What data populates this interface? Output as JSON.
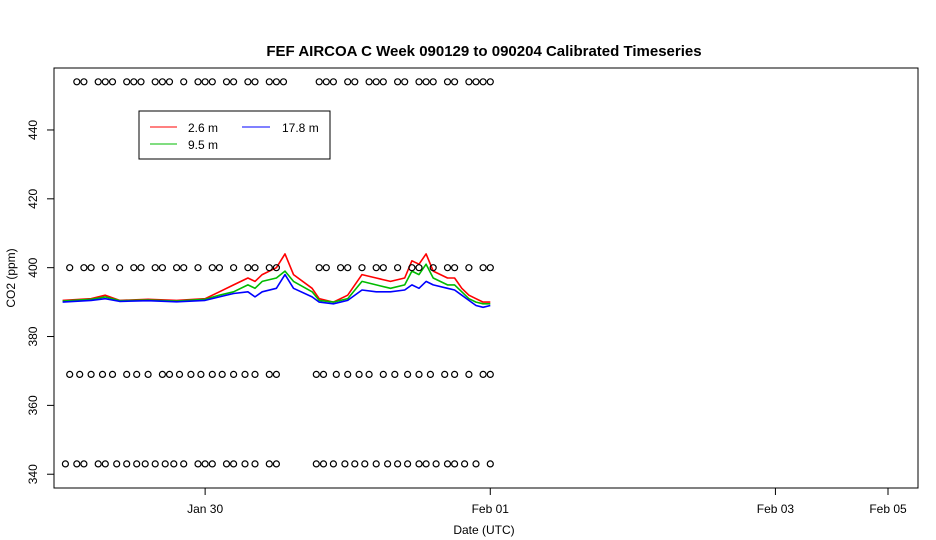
{
  "chart_data": {
    "type": "line",
    "title": "FEF AIRCOA C  Week 090129 to 090204  Calibrated Timeseries",
    "xlabel": "Date (UTC)",
    "ylabel": "CO2 (ppm)",
    "xlim": [
      -1.06,
      5.0
    ],
    "ylim": [
      336,
      458
    ],
    "x_ticks": [
      {
        "value": 0,
        "label": "Jan 30"
      },
      {
        "value": 2,
        "label": "Feb 01"
      },
      {
        "value": 4,
        "label": "Feb 03"
      },
      {
        "value": 6,
        "label": "Feb 05"
      }
    ],
    "y_ticks": [
      {
        "value": 340,
        "label": "340"
      },
      {
        "value": 360,
        "label": "360"
      },
      {
        "value": 380,
        "label": "380"
      },
      {
        "value": 400,
        "label": "400"
      },
      {
        "value": 420,
        "label": "420"
      },
      {
        "value": 440,
        "label": "440"
      }
    ],
    "legend": {
      "placement": "top-left",
      "entries": [
        {
          "name": "2.6 m",
          "color": "#ff0000"
        },
        {
          "name": "9.5 m",
          "color": "#00bb00"
        },
        {
          "name": "17.8 m",
          "color": "#0000ff"
        }
      ]
    },
    "series": [
      {
        "name": "2.6 m",
        "color": "#ff0000",
        "x": [
          -1.0,
          -0.8,
          -0.7,
          -0.6,
          -0.4,
          -0.2,
          0.0,
          0.1,
          0.2,
          0.3,
          0.35,
          0.4,
          0.5,
          0.56,
          0.62,
          0.75,
          0.8,
          0.9,
          1.0,
          1.1,
          1.2,
          1.3,
          1.4,
          1.45,
          1.5,
          1.55,
          1.6,
          1.7,
          1.75,
          1.8,
          1.85,
          1.9,
          1.95,
          2.0
        ],
        "y": [
          390.5,
          391,
          392,
          390.5,
          390.8,
          390.5,
          391,
          393,
          395,
          397,
          396,
          398,
          400,
          404,
          398,
          394,
          391,
          390,
          392,
          398,
          397,
          396,
          397,
          402,
          401,
          404,
          399,
          397,
          397,
          394,
          392,
          391,
          390,
          390
        ]
      },
      {
        "name": "9.5 m",
        "color": "#00bb00",
        "x": [
          -1.0,
          -0.8,
          -0.7,
          -0.6,
          -0.4,
          -0.2,
          0.0,
          0.1,
          0.2,
          0.3,
          0.35,
          0.4,
          0.5,
          0.56,
          0.62,
          0.75,
          0.8,
          0.9,
          1.0,
          1.1,
          1.2,
          1.3,
          1.4,
          1.45,
          1.5,
          1.55,
          1.6,
          1.7,
          1.75,
          1.8,
          1.85,
          1.9,
          1.95,
          2.0
        ],
        "y": [
          390.3,
          390.8,
          391.5,
          390.4,
          390.6,
          390.3,
          390.8,
          392,
          393,
          395,
          394,
          396,
          397,
          399,
          396,
          393,
          390.5,
          390,
          391,
          396,
          395,
          394,
          395,
          399,
          398,
          401,
          397,
          395,
          395,
          393,
          391,
          390,
          389.5,
          389.5
        ]
      },
      {
        "name": "17.8 m",
        "color": "#0000ff",
        "x": [
          -1.0,
          -0.8,
          -0.7,
          -0.6,
          -0.4,
          -0.2,
          0.0,
          0.1,
          0.2,
          0.3,
          0.35,
          0.4,
          0.5,
          0.56,
          0.62,
          0.75,
          0.8,
          0.9,
          1.0,
          1.1,
          1.2,
          1.3,
          1.4,
          1.45,
          1.5,
          1.55,
          1.6,
          1.7,
          1.75,
          1.8,
          1.85,
          1.9,
          1.95,
          2.0
        ],
        "y": [
          390,
          390.5,
          391,
          390.2,
          390.4,
          390.1,
          390.5,
          391.5,
          392.5,
          393,
          391.5,
          393,
          394,
          398,
          394,
          391.5,
          390,
          389.5,
          390.5,
          393.5,
          393,
          393,
          393.5,
          395,
          394,
          396,
          395,
          394,
          393.5,
          392,
          390.5,
          389,
          388.5,
          389
        ]
      }
    ],
    "marker_rows": [
      {
        "y": 454,
        "x": [
          -0.9,
          -0.85,
          -0.75,
          -0.7,
          -0.65,
          -0.55,
          -0.5,
          -0.45,
          -0.35,
          -0.3,
          -0.25,
          -0.15,
          -0.05,
          0.0,
          0.05,
          0.15,
          0.2,
          0.3,
          0.35,
          0.45,
          0.5,
          0.55,
          0.8,
          0.85,
          0.9,
          1.0,
          1.05,
          1.15,
          1.2,
          1.25,
          1.35,
          1.4,
          1.5,
          1.55,
          1.6,
          1.7,
          1.75,
          1.85,
          1.9,
          1.95,
          2.0
        ]
      },
      {
        "y": 400,
        "x": [
          -0.95,
          -0.85,
          -0.8,
          -0.7,
          -0.6,
          -0.5,
          -0.45,
          -0.35,
          -0.3,
          -0.2,
          -0.15,
          -0.05,
          0.05,
          0.1,
          0.2,
          0.3,
          0.35,
          0.45,
          0.5,
          0.8,
          0.85,
          0.95,
          1.0,
          1.1,
          1.2,
          1.25,
          1.35,
          1.45,
          1.5,
          1.6,
          1.7,
          1.75,
          1.85,
          1.95,
          2.0
        ]
      },
      {
        "y": 369,
        "x": [
          -0.95,
          -0.88,
          -0.8,
          -0.72,
          -0.65,
          -0.55,
          -0.48,
          -0.4,
          -0.3,
          -0.25,
          -0.18,
          -0.1,
          -0.03,
          0.05,
          0.12,
          0.2,
          0.28,
          0.35,
          0.45,
          0.5,
          0.78,
          0.83,
          0.92,
          1.0,
          1.08,
          1.15,
          1.25,
          1.33,
          1.42,
          1.5,
          1.58,
          1.68,
          1.75,
          1.85,
          1.95,
          2.0
        ]
      },
      {
        "y": 343,
        "x": [
          -0.98,
          -0.9,
          -0.85,
          -0.75,
          -0.7,
          -0.62,
          -0.55,
          -0.48,
          -0.42,
          -0.35,
          -0.28,
          -0.22,
          -0.15,
          -0.05,
          0.0,
          0.05,
          0.15,
          0.2,
          0.28,
          0.35,
          0.45,
          0.5,
          0.78,
          0.83,
          0.9,
          0.98,
          1.05,
          1.12,
          1.2,
          1.28,
          1.35,
          1.42,
          1.5,
          1.55,
          1.62,
          1.7,
          1.75,
          1.82,
          1.9,
          2.0
        ]
      }
    ]
  }
}
